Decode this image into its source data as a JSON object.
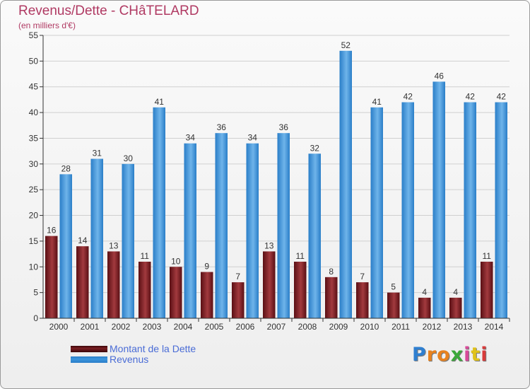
{
  "title": "Revenus/Dette - CHâTELARD",
  "subtitle": "(en milliers d'€)",
  "logo_text": "Proxiti",
  "colors": {
    "title": "#b03a63",
    "dette": "#7a1e22",
    "revenus": "#3d96dd",
    "legend_text": "#4a6cd6",
    "axis": "#333333",
    "grid": "#d0d0d0"
  },
  "chart_data": {
    "type": "bar",
    "title": "Revenus/Dette - CHâTELARD",
    "subtitle": "(en milliers d'€)",
    "categories": [
      "2000",
      "2001",
      "2002",
      "2003",
      "2004",
      "2005",
      "2006",
      "2007",
      "2008",
      "2009",
      "2010",
      "2011",
      "2012",
      "2013",
      "2014"
    ],
    "series": [
      {
        "name": "Montant de la Dette",
        "color": "#7a1e22",
        "values": [
          16,
          14,
          13,
          11,
          10,
          9,
          7,
          13,
          11,
          8,
          7,
          5,
          4,
          4,
          11
        ]
      },
      {
        "name": "Revenus",
        "color": "#3d96dd",
        "values": [
          28,
          31,
          30,
          41,
          34,
          36,
          34,
          36,
          32,
          52,
          41,
          42,
          46,
          42,
          42
        ]
      }
    ],
    "ylim": [
      0,
      55
    ],
    "yticks": [
      0,
      5,
      10,
      15,
      20,
      25,
      30,
      35,
      40,
      45,
      50,
      55
    ],
    "grid": true,
    "legend_position": "bottom-left",
    "data_labels": true
  }
}
